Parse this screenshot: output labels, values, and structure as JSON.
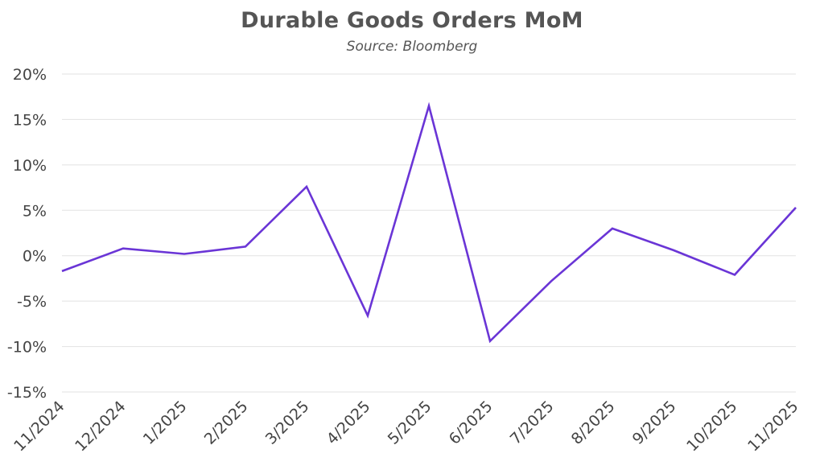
{
  "chart_data": {
    "type": "line",
    "title": "Durable Goods Orders MoM",
    "subtitle": "Source: Bloomberg",
    "xlabel": "",
    "ylabel": "",
    "categories": [
      "11/2024",
      "12/2024",
      "1/2025",
      "2/2025",
      "3/2025",
      "4/2025",
      "5/2025",
      "6/2025",
      "7/2025",
      "8/2025",
      "9/2025",
      "10/2025",
      "11/2025"
    ],
    "series": [
      {
        "values": [
          -1.7,
          0.8,
          0.2,
          1.0,
          7.6,
          -6.6,
          16.5,
          -9.4,
          -2.8,
          3.0,
          0.6,
          -2.1,
          5.3
        ]
      }
    ],
    "ylim": [
      -15,
      20
    ],
    "yticks": [
      20,
      15,
      10,
      5,
      0,
      -5,
      -10,
      -15
    ],
    "ytick_labels": [
      "20%",
      "15%",
      "10%",
      "5%",
      "0%",
      "-5%",
      "-10%",
      "-15%"
    ],
    "grid": true,
    "legend": "none",
    "line_color": "#6a35d6"
  }
}
